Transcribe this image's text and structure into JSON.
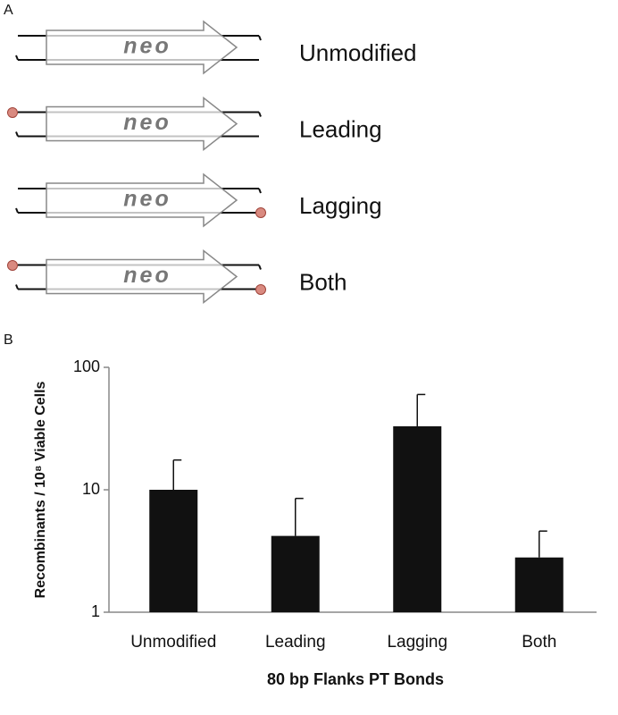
{
  "panel_a": {
    "label": "A",
    "constructs": [
      {
        "insert": "neo",
        "name": "Unmodified"
      },
      {
        "insert": "neo",
        "name": "Leading"
      },
      {
        "insert": "neo",
        "name": "Lagging"
      },
      {
        "insert": "neo",
        "name": "Both"
      }
    ]
  },
  "chart_data": {
    "type": "bar",
    "panel_label": "B",
    "categories": [
      "Unmodified",
      "Leading",
      "Lagging",
      "Both"
    ],
    "values": [
      10,
      4.2,
      33,
      2.8
    ],
    "errors": [
      7.5,
      4.3,
      27,
      1.8
    ],
    "xlabel": "80 bp Flanks PT Bonds",
    "ylabel": "Recombinants / 10⁸ Viable Cells",
    "ylim": [
      1,
      100
    ],
    "yticks": [
      1,
      10,
      100
    ],
    "log_scale": true,
    "color": "#111111"
  }
}
